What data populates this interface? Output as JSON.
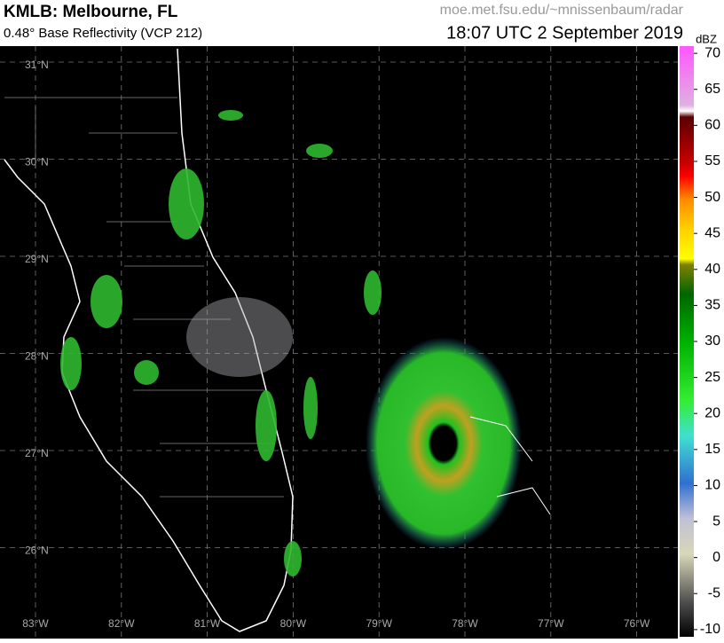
{
  "header": {
    "title": "KMLB: Melbourne, FL",
    "subtitle": "0.48° Base Reflectivity (VCP 212)",
    "source": "moe.met.fsu.edu/~mnissenbaum/radar",
    "timestamp": "18:07 UTC 2 September 2019"
  },
  "map": {
    "lat_labels": [
      "31°N",
      "30°N",
      "29°N",
      "28°N",
      "27°N",
      "26°N"
    ],
    "lon_labels": [
      "83°W",
      "82°W",
      "81°W",
      "80°W",
      "79°W",
      "78°W",
      "77°W",
      "76°W"
    ]
  },
  "colorbar": {
    "unit": "dBZ",
    "range": [
      -11,
      71
    ],
    "ticks": [
      70,
      65,
      60,
      55,
      50,
      45,
      40,
      35,
      30,
      25,
      20,
      15,
      10,
      5,
      0,
      -5,
      -10
    ]
  }
}
